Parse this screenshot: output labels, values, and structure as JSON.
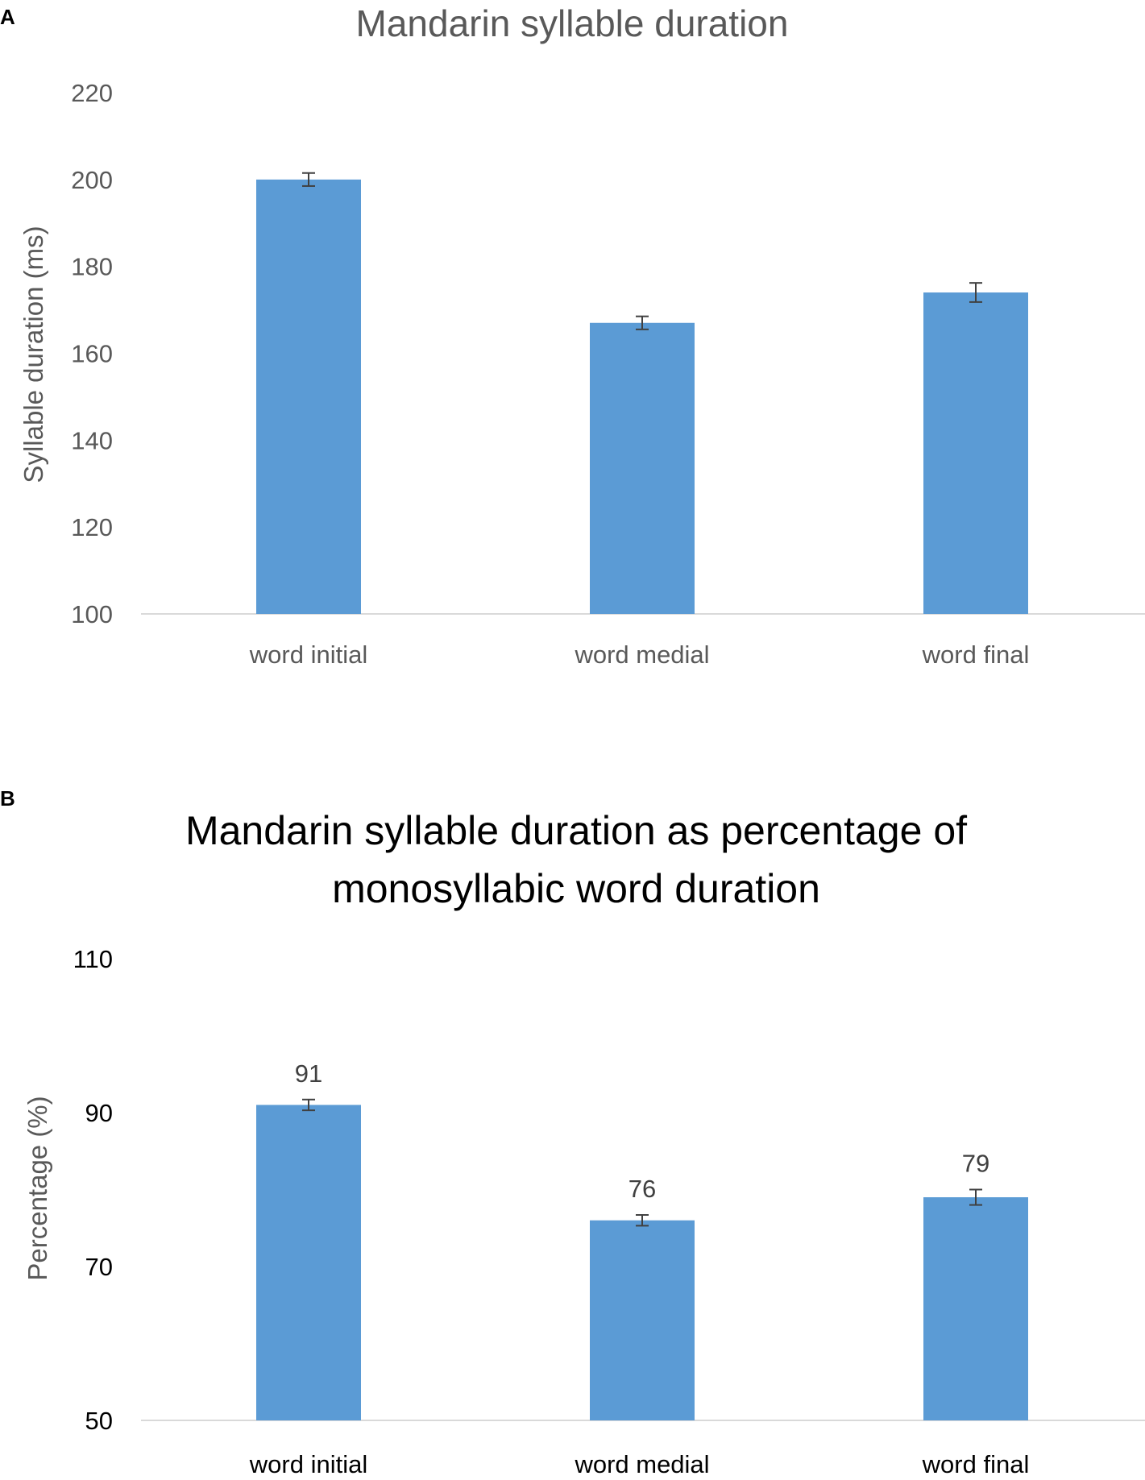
{
  "panels": {
    "a_label": "A",
    "b_label": "B"
  },
  "colors": {
    "bar": "#5b9bd5",
    "error_bar": "#404040",
    "axis_line": "#d9d9d9",
    "text": "#595959",
    "title_b": "#000000"
  },
  "chart_data": [
    {
      "type": "bar",
      "title": "Mandarin syllable duration",
      "xlabel": "",
      "ylabel": "Syllable duration (ms)",
      "categories": [
        "word initial",
        "word medial",
        "word final"
      ],
      "values": [
        200,
        167,
        174
      ],
      "error": [
        1.5,
        1.5,
        2.2
      ],
      "ylim": [
        100,
        220
      ],
      "yticks": [
        "100",
        "120",
        "140",
        "160",
        "180",
        "200",
        "220"
      ],
      "grid": false,
      "data_labels": []
    },
    {
      "type": "bar",
      "title_lines": [
        "Mandarin syllable duration as percentage of",
        "monosyllabic word duration"
      ],
      "xlabel": "",
      "ylabel": "Percentage (%)",
      "categories": [
        "word initial",
        "word medial",
        "word final"
      ],
      "values": [
        91,
        76,
        79
      ],
      "error": [
        0.7,
        0.7,
        1.0
      ],
      "ylim": [
        50,
        110
      ],
      "yticks": [
        "50",
        "70",
        "90",
        "110"
      ],
      "grid": false,
      "data_labels": [
        "91",
        "76",
        "79"
      ]
    }
  ]
}
